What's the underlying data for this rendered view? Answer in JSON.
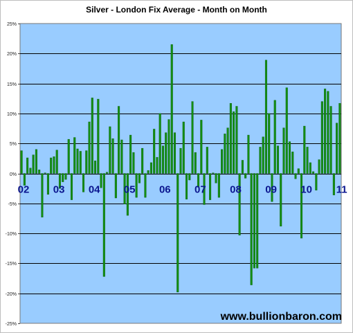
{
  "chart_data": {
    "type": "bar",
    "title": "Silver - London Fix Average - Month on Month",
    "xlabel": "",
    "ylabel": "",
    "ylim": [
      -25,
      25
    ],
    "y_tick_values": [
      25,
      20,
      15,
      10,
      5,
      0,
      -5,
      -10,
      -15,
      -20,
      -25
    ],
    "y_tick_labels": [
      "25%",
      "20%",
      "15%",
      "10%",
      "5%",
      "0%",
      "-5%",
      "-10%",
      "-15%",
      "-20%",
      "-25%"
    ],
    "x_tick_labels": [
      "02",
      "03",
      "04",
      "05",
      "06",
      "07",
      "08",
      "09",
      "10",
      "11"
    ],
    "x_tick_start_index": [
      0,
      12,
      24,
      36,
      48,
      60,
      72,
      84,
      96,
      108
    ],
    "grid": true,
    "legend": "none",
    "values": [
      3.8,
      -2.0,
      2.6,
      0.9,
      3.1,
      4.0,
      0.6,
      -7.3,
      0.1,
      -3.5,
      2.6,
      2.8,
      3.9,
      -2.5,
      -1.4,
      -1.0,
      5.7,
      -4.4,
      6.0,
      4.1,
      3.7,
      -3.1,
      3.8,
      8.6,
      12.6,
      2.1,
      12.4,
      -2.4,
      -17.2,
      0.2,
      7.8,
      5.8,
      -4.1,
      11.2,
      5.6,
      -5.1,
      -7.0,
      6.4,
      3.5,
      -4.0,
      -1.6,
      4.2,
      -4.0,
      0.5,
      1.8,
      7.4,
      2.7,
      10.0,
      4.6,
      6.8,
      9.0,
      21.5,
      6.8,
      -19.8,
      4.2,
      8.6,
      -4.3,
      -1.1,
      12.0,
      3.5,
      -2.3,
      8.9,
      -5.2,
      4.4,
      -4.4,
      0.1,
      -1.6,
      -4.0,
      4.0,
      6.6,
      7.6,
      11.7,
      10.3,
      11.2,
      -10.3,
      2.2,
      -0.8,
      6.4,
      -18.6,
      -15.8,
      -15.8,
      4.4,
      6.1,
      18.9,
      10.0,
      -4.7,
      12.2,
      4.6,
      -8.8,
      7.6,
      14.3,
      5.3,
      3.6,
      -0.9,
      0.8,
      -10.8,
      7.9,
      4.4,
      1.8,
      0.3,
      -2.8,
      2.3,
      12.0,
      14.1,
      13.7,
      11.2,
      -3.6,
      8.4,
      11.7
    ]
  },
  "watermark": "www.bullionbaron.com",
  "colors": {
    "plot_background": "#99ccff",
    "bar": "#138f13",
    "bar_edge": "#0c5c0c",
    "gridline": "#000000",
    "x_tick_label": "#0b168f"
  }
}
